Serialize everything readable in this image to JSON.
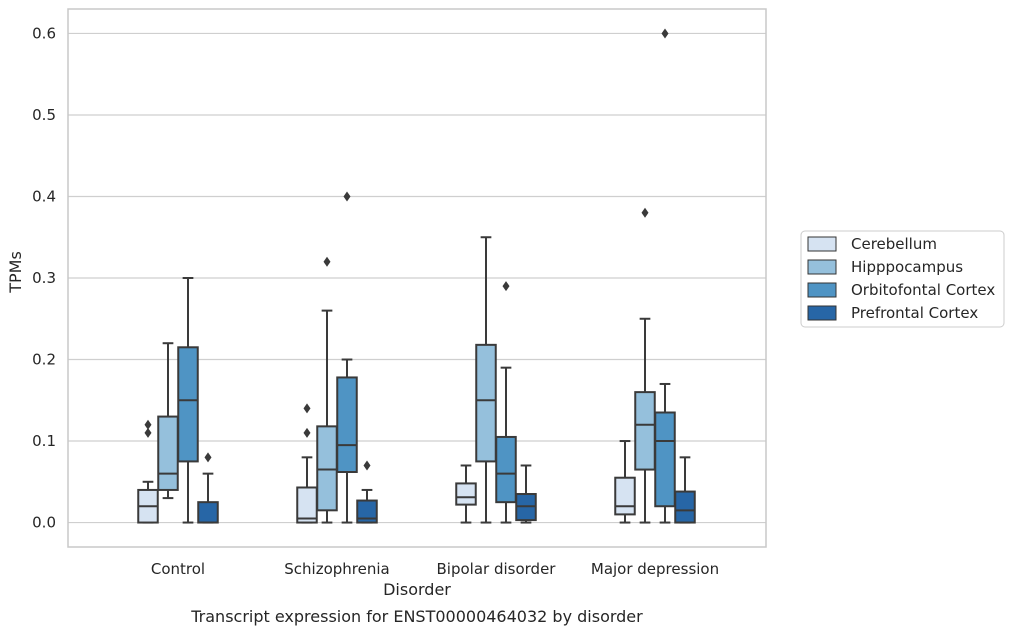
{
  "colors": {
    "series": [
      "#d6e3f2",
      "#95c0dc",
      "#4f94c4",
      "#2766a6"
    ],
    "line": "#3a3a3a",
    "grid": "#cfcfcf",
    "frame": "#c8c8c8"
  },
  "chart_data": {
    "type": "box",
    "categories": [
      "Control",
      "Schizophrenia",
      "Bipolar disorder",
      "Major depression"
    ],
    "xlabel": "Disorder",
    "ylabel": "TPMs",
    "caption": "Transcript expression for ENST00000464032 by disorder",
    "ylim": [
      -0.03,
      0.63
    ],
    "yticks": [
      0.0,
      0.1,
      0.2,
      0.3,
      0.4,
      0.5,
      0.6
    ],
    "ytick_labels": [
      "0.0",
      "0.1",
      "0.2",
      "0.3",
      "0.4",
      "0.5",
      "0.6"
    ],
    "grid": true,
    "legend_position": "right",
    "series": [
      {
        "name": "Cerebellum",
        "boxes": [
          {
            "whislo": 0.0,
            "q1": 0.0,
            "med": 0.02,
            "q3": 0.04,
            "whishi": 0.05,
            "fliers": [
              0.11,
              0.12
            ]
          },
          {
            "whislo": 0.0,
            "q1": 0.0,
            "med": 0.005,
            "q3": 0.043,
            "whishi": 0.08,
            "fliers": [
              0.11,
              0.14
            ]
          },
          {
            "whislo": 0.0,
            "q1": 0.022,
            "med": 0.031,
            "q3": 0.048,
            "whishi": 0.07,
            "fliers": []
          },
          {
            "whislo": 0.0,
            "q1": 0.01,
            "med": 0.02,
            "q3": 0.055,
            "whishi": 0.1,
            "fliers": []
          }
        ]
      },
      {
        "name": "Hipppocampus",
        "boxes": [
          {
            "whislo": 0.03,
            "q1": 0.04,
            "med": 0.06,
            "q3": 0.13,
            "whishi": 0.22,
            "fliers": []
          },
          {
            "whislo": 0.0,
            "q1": 0.015,
            "med": 0.065,
            "q3": 0.118,
            "whishi": 0.26,
            "fliers": [
              0.32
            ]
          },
          {
            "whislo": 0.0,
            "q1": 0.075,
            "med": 0.15,
            "q3": 0.218,
            "whishi": 0.35,
            "fliers": []
          },
          {
            "whislo": 0.0,
            "q1": 0.065,
            "med": 0.12,
            "q3": 0.16,
            "whishi": 0.25,
            "fliers": [
              0.38
            ]
          }
        ]
      },
      {
        "name": "Orbitofontal Cortex",
        "boxes": [
          {
            "whislo": 0.0,
            "q1": 0.075,
            "med": 0.15,
            "q3": 0.215,
            "whishi": 0.3,
            "fliers": []
          },
          {
            "whislo": 0.0,
            "q1": 0.062,
            "med": 0.095,
            "q3": 0.178,
            "whishi": 0.2,
            "fliers": [
              0.4
            ]
          },
          {
            "whislo": 0.0,
            "q1": 0.025,
            "med": 0.06,
            "q3": 0.105,
            "whishi": 0.19,
            "fliers": [
              0.29
            ]
          },
          {
            "whislo": 0.0,
            "q1": 0.02,
            "med": 0.1,
            "q3": 0.135,
            "whishi": 0.17,
            "fliers": [
              0.6
            ]
          }
        ]
      },
      {
        "name": "Prefrontal Cortex",
        "boxes": [
          {
            "whislo": 0.0,
            "q1": 0.0,
            "med": 0.0,
            "q3": 0.025,
            "whishi": 0.06,
            "fliers": [
              0.08
            ]
          },
          {
            "whislo": 0.0,
            "q1": 0.0,
            "med": 0.005,
            "q3": 0.027,
            "whishi": 0.04,
            "fliers": [
              0.07
            ]
          },
          {
            "whislo": 0.0,
            "q1": 0.003,
            "med": 0.02,
            "q3": 0.035,
            "whishi": 0.07,
            "fliers": []
          },
          {
            "whislo": 0.0,
            "q1": 0.0,
            "med": 0.015,
            "q3": 0.038,
            "whishi": 0.08,
            "fliers": []
          }
        ]
      }
    ]
  }
}
